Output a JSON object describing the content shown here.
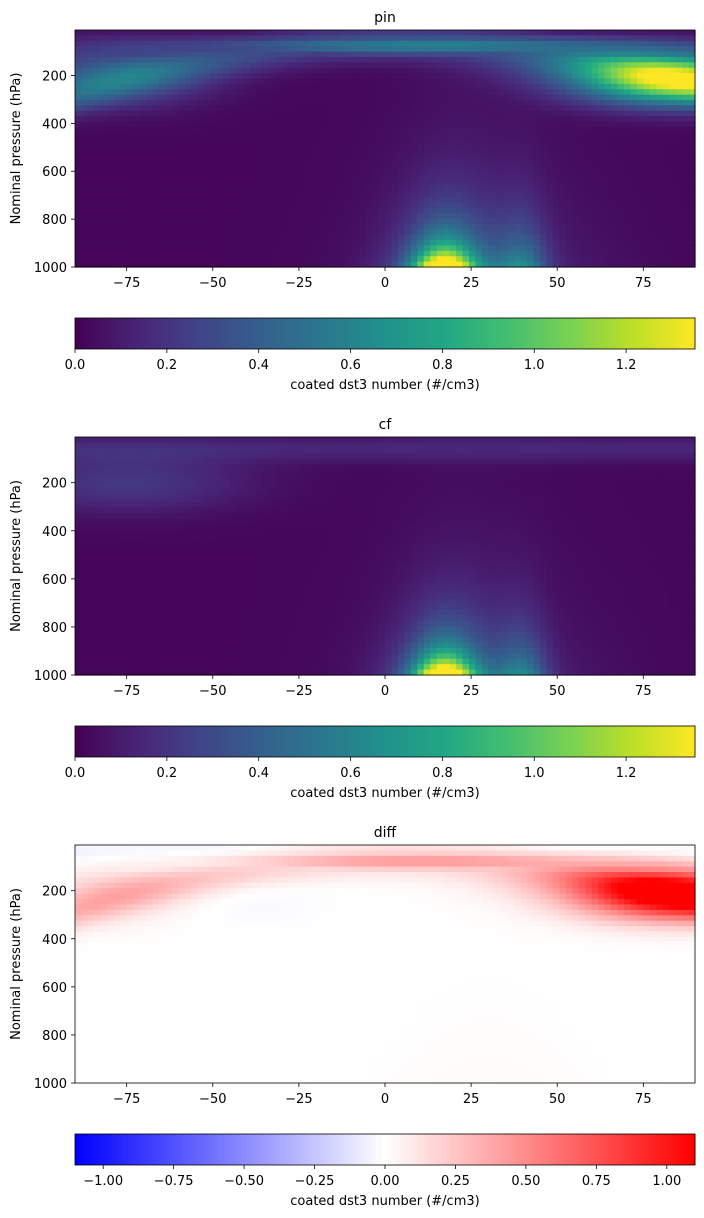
{
  "chart_data": [
    {
      "type": "heatmap",
      "title": "pin",
      "ylabel": "Nominal pressure (hPa)",
      "xlabel": "",
      "xlim": [
        -90,
        90
      ],
      "ylim": [
        1000,
        10
      ],
      "xticks": [
        -75,
        -50,
        -25,
        0,
        25,
        50,
        75
      ],
      "yticks": [
        200,
        400,
        600,
        800,
        1000
      ],
      "colormap": "viridis",
      "colorbar": {
        "label": "coated dst3 number (#/cm3)",
        "range": [
          0.0,
          1.35
        ],
        "ticks": [
          "0.0",
          "0.2",
          "0.4",
          "0.6",
          "0.8",
          "1.0",
          "1.2"
        ],
        "placement": "bottom"
      },
      "features": [
        {
          "lat": 80,
          "p": 230,
          "value": 1.0
        },
        {
          "lat": 0,
          "p": 70,
          "value": 0.55
        },
        {
          "lat": -80,
          "p": 200,
          "value": 0.35
        },
        {
          "lat": 17,
          "p": 980,
          "value": 1.3
        },
        {
          "lat": 40,
          "p": 950,
          "value": 0.5
        }
      ]
    },
    {
      "type": "heatmap",
      "title": "cf",
      "ylabel": "Nominal pressure (hPa)",
      "xlabel": "",
      "xlim": [
        -90,
        90
      ],
      "ylim": [
        1000,
        10
      ],
      "xticks": [
        -75,
        -50,
        -25,
        0,
        25,
        50,
        75
      ],
      "yticks": [
        200,
        400,
        600,
        800,
        1000
      ],
      "colormap": "viridis",
      "colorbar": {
        "label": "coated dst3 number (#/cm3)",
        "range": [
          0.0,
          1.35
        ],
        "ticks": [
          "0.0",
          "0.2",
          "0.4",
          "0.6",
          "0.8",
          "1.0",
          "1.2"
        ],
        "placement": "bottom"
      },
      "features": [
        {
          "lat": -75,
          "p": 200,
          "value": 0.2
        },
        {
          "lat": 17,
          "p": 980,
          "value": 1.3
        },
        {
          "lat": 40,
          "p": 950,
          "value": 0.5
        }
      ]
    },
    {
      "type": "heatmap",
      "title": "diff",
      "ylabel": "Nominal pressure (hPa)",
      "xlabel": "",
      "xlim": [
        -90,
        90
      ],
      "ylim": [
        1000,
        10
      ],
      "xticks": [
        -75,
        -50,
        -25,
        0,
        25,
        50,
        75
      ],
      "yticks": [
        200,
        400,
        600,
        800,
        1000
      ],
      "colormap": "bwr",
      "colorbar": {
        "label": "coated dst3 number (#/cm3)",
        "range": [
          -1.1,
          1.1
        ],
        "ticks": [
          "−1.00",
          "−0.75",
          "−0.50",
          "−0.25",
          "0.00",
          "0.25",
          "0.50",
          "0.75",
          "1.00"
        ],
        "placement": "bottom"
      },
      "features": [
        {
          "lat": 80,
          "p": 230,
          "value": 1.0
        },
        {
          "lat": -80,
          "p": 200,
          "value": 0.25
        },
        {
          "lat": 5,
          "p": 800,
          "value": -0.05
        }
      ]
    }
  ]
}
